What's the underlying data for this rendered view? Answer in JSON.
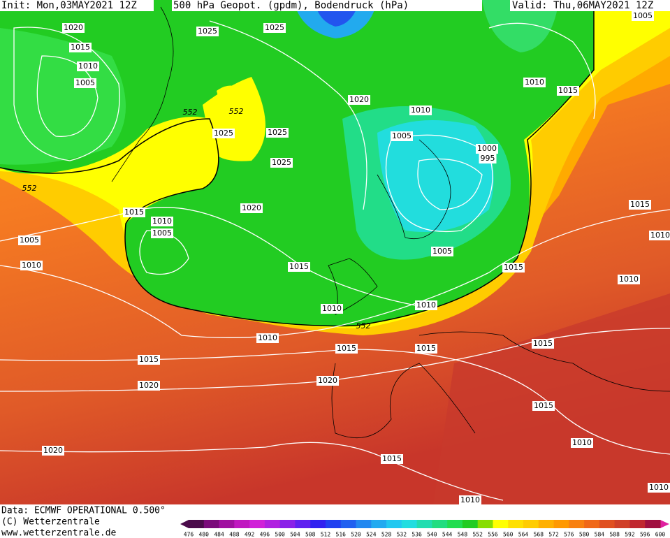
{
  "header": {
    "init": "Init: Mon,03MAY2021 12Z",
    "title": "500 hPa Geopot. (gpdm), Bodendruck (hPa)",
    "valid": "Valid: Thu,06MAY2021 12Z"
  },
  "footer": {
    "data": "Data: ECMWF OPERATIONAL 0.500°",
    "copyright": "(C) Wetterzentrale",
    "url": "www.wetterzentrale.de"
  },
  "scale": [
    476,
    480,
    484,
    488,
    492,
    496,
    500,
    504,
    508,
    512,
    516,
    520,
    524,
    528,
    532,
    536,
    540,
    544,
    548,
    552,
    556,
    560,
    564,
    568,
    572,
    576,
    580,
    584,
    588,
    592,
    596,
    600
  ],
  "isobar_labels": [
    "1020",
    "1015",
    "1010",
    "1005",
    "1025",
    "1025",
    "1005",
    "1010",
    "1015",
    "1020",
    "1010",
    "1005",
    "1000",
    "995",
    "552",
    "552",
    "1025",
    "1025",
    "1025",
    "552",
    "1020",
    "1015",
    "1010",
    "1005",
    "1005",
    "1010",
    "1015",
    "1005",
    "1015",
    "1015",
    "1010",
    "1010",
    "1010",
    "1010",
    "552",
    "1010",
    "1015",
    "1015",
    "1015",
    "1015",
    "1020",
    "1020",
    "1015",
    "1010",
    "1020",
    "1015",
    "1010",
    "1010"
  ]
}
